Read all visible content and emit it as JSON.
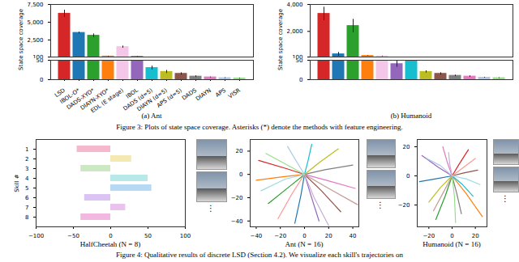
{
  "chart_data": [
    {
      "type": "bar",
      "title": "(a) Ant",
      "ylabel": "State space coverage",
      "categories": [
        "LSD",
        "IBOL-O*",
        "DADS-XYO*",
        "DIAYN-XYO*",
        "EDL (E stage)",
        "IBOL",
        "DADS (d=5)",
        "DIAYN (d=5)",
        "APS (d=5)",
        "DADS",
        "DIAYN",
        "APS",
        "VISR"
      ],
      "values": [
        6200,
        3500,
        3100,
        180,
        1500,
        130,
        30,
        20,
        15,
        8,
        6,
        4,
        3
      ],
      "errors": [
        500,
        120,
        250,
        40,
        150,
        30,
        5,
        4,
        3,
        2,
        1,
        1,
        1
      ],
      "colors": [
        "#d62728",
        "#1f77b4",
        "#2ca02c",
        "#ff7f0e",
        "#f4c6e7",
        "#9467bd",
        "#17becf",
        "#bcbd22",
        "#8c564b",
        "#7f7f7f",
        "#e377c2",
        "#aec7e8",
        "#98df8a"
      ],
      "panels": [
        {
          "ylim": [
            100,
            7500
          ],
          "yticks": [
            100,
            2500,
            5000,
            7500
          ]
        },
        {
          "ylim": [
            0,
            50
          ],
          "yticks": [
            0,
            50
          ]
        }
      ]
    },
    {
      "type": "bar",
      "title": "(b) Humanoid",
      "ylabel": "State space coverage",
      "tick_labels": "y",
      "categories": [
        null,
        null,
        null,
        null,
        null,
        null,
        null,
        null,
        null,
        null,
        null,
        null,
        null
      ],
      "values": [
        3300,
        300,
        2400,
        180,
        150,
        40,
        70,
        20,
        15,
        10,
        8,
        5,
        4
      ],
      "errors": [
        500,
        150,
        500,
        20,
        20,
        8,
        15,
        3,
        3,
        2,
        2,
        1,
        1
      ],
      "colors": [
        "#d62728",
        "#1f77b4",
        "#2ca02c",
        "#ff7f0e",
        "#f4c6e7",
        "#9467bd",
        "#17becf",
        "#bcbd22",
        "#8c564b",
        "#7f7f7f",
        "#e377c2",
        "#aec7e8",
        "#98df8a"
      ],
      "panels": [
        {
          "ylim": [
            100,
            4000
          ],
          "yticks": [
            100,
            2000,
            4000
          ]
        },
        {
          "ylim": [
            0,
            50
          ],
          "yticks": [
            0,
            50
          ]
        }
      ]
    },
    {
      "type": "bar",
      "orientation": "horizontal",
      "title": "HalfCheetah (N = 8)",
      "ylabel": "Skill #",
      "categories": [
        "1",
        "2",
        "3",
        "4",
        "5",
        "6",
        "7",
        "8"
      ],
      "values": [
        -45,
        28,
        -40,
        50,
        55,
        -35,
        20,
        -40
      ],
      "colors": [
        "#f4a6c0",
        "#f1e3a0",
        "#bfe3b4",
        "#a6e3e3",
        "#a6d0f0",
        "#d2b4f0",
        "#e3b4e8",
        "#f0a6d8"
      ],
      "xlim": [
        -100,
        100
      ],
      "xticks": [
        -100,
        -50,
        0,
        50,
        100
      ]
    },
    {
      "type": "line",
      "title": "Ant (N = 16)",
      "xlim": [
        -45,
        45
      ],
      "xticks": [
        -40,
        -20,
        0,
        20,
        40
      ],
      "ylim": [
        -45,
        30
      ],
      "yticks": [
        -40,
        -20,
        0,
        20
      ],
      "series": [
        {
          "color": "#d62728",
          "x": [
            0,
            -15,
            -38
          ],
          "values": [
            0,
            5,
            12
          ]
        },
        {
          "color": "#ff7f0e",
          "x": [
            0,
            -18,
            -40
          ],
          "values": [
            0,
            -2,
            -5
          ]
        },
        {
          "color": "#2ca02c",
          "x": [
            0,
            -12,
            -30
          ],
          "values": [
            0,
            -10,
            -25
          ]
        },
        {
          "color": "#1f77b4",
          "x": [
            0,
            -3,
            -8
          ],
          "values": [
            0,
            -18,
            -42
          ]
        },
        {
          "color": "#9467bd",
          "x": [
            0,
            5,
            12
          ],
          "values": [
            0,
            -17,
            -40
          ]
        },
        {
          "color": "#8c564b",
          "x": [
            0,
            14,
            30
          ],
          "values": [
            0,
            -14,
            -32
          ]
        },
        {
          "color": "#e377c2",
          "x": [
            0,
            18,
            42
          ],
          "values": [
            0,
            -5,
            -12
          ]
        },
        {
          "color": "#7f7f7f",
          "x": [
            0,
            17,
            40
          ],
          "values": [
            0,
            4,
            8
          ]
        },
        {
          "color": "#bcbd22",
          "x": [
            0,
            12,
            28
          ],
          "values": [
            0,
            10,
            22
          ]
        },
        {
          "color": "#17becf",
          "x": [
            0,
            3,
            6
          ],
          "values": [
            0,
            12,
            26
          ]
        },
        {
          "color": "#aec7e8",
          "x": [
            0,
            -6,
            -14
          ],
          "values": [
            0,
            10,
            24
          ]
        },
        {
          "color": "#98df8a",
          "x": [
            0,
            -14,
            -32
          ],
          "values": [
            0,
            8,
            18
          ]
        },
        {
          "color": "#ff9896",
          "x": [
            0,
            -10,
            -22
          ],
          "values": [
            0,
            -16,
            -38
          ]
        },
        {
          "color": "#c5b0d5",
          "x": [
            0,
            8,
            20
          ],
          "values": [
            0,
            -20,
            -44
          ]
        },
        {
          "color": "#c49c94",
          "x": [
            0,
            20,
            44
          ],
          "values": [
            0,
            -12,
            -26
          ]
        },
        {
          "color": "#9edae5",
          "x": [
            0,
            -16,
            -36
          ],
          "values": [
            0,
            -4,
            -14
          ]
        }
      ]
    },
    {
      "type": "line",
      "title": "Humanoid (N = 16)",
      "xlim": [
        -30,
        30
      ],
      "xticks": [
        -20,
        0,
        20
      ],
      "ylim": [
        -35,
        25
      ],
      "yticks": [
        -20,
        0,
        20
      ],
      "series": [
        {
          "color": "#ff7f0e",
          "x": [
            0,
            12,
            26
          ],
          "values": [
            0,
            -12,
            -28
          ]
        },
        {
          "color": "#9467bd",
          "x": [
            0,
            -12,
            -26
          ],
          "values": [
            0,
            6,
            14
          ]
        },
        {
          "color": "#2ca02c",
          "x": [
            0,
            -6,
            -14
          ],
          "values": [
            0,
            -14,
            -30
          ]
        },
        {
          "color": "#1f77b4",
          "x": [
            0,
            -14,
            -28
          ],
          "values": [
            0,
            -2,
            -4
          ]
        },
        {
          "color": "#d62728",
          "x": [
            0,
            6,
            14
          ],
          "values": [
            0,
            8,
            18
          ]
        },
        {
          "color": "#8c564b",
          "x": [
            0,
            10,
            22
          ],
          "values": [
            0,
            2,
            4
          ]
        },
        {
          "color": "#e377c2",
          "x": [
            0,
            -4,
            -8
          ],
          "values": [
            0,
            9,
            20
          ]
        },
        {
          "color": "#7f7f7f",
          "x": [
            0,
            4,
            8
          ],
          "values": [
            0,
            -12,
            -26
          ]
        },
        {
          "color": "#bcbd22",
          "x": [
            0,
            -10,
            -20
          ],
          "values": [
            0,
            -8,
            -18
          ]
        },
        {
          "color": "#17becf",
          "x": [
            0,
            9,
            18
          ],
          "values": [
            0,
            -6,
            -14
          ]
        },
        {
          "color": "#aec7e8",
          "x": [
            0,
            -10,
            -22
          ],
          "values": [
            0,
            7,
            12
          ]
        },
        {
          "color": "#98df8a",
          "x": [
            0,
            2,
            3
          ],
          "values": [
            0,
            -14,
            -32
          ]
        },
        {
          "color": "#ff9896",
          "x": [
            0,
            10,
            20
          ],
          "values": [
            0,
            6,
            12
          ]
        },
        {
          "color": "#c5b0d5",
          "x": [
            0,
            -2,
            -3
          ],
          "values": [
            0,
            8,
            16
          ]
        },
        {
          "color": "#c49c94",
          "x": [
            0,
            -8,
            -16
          ],
          "values": [
            0,
            -12,
            -24
          ]
        },
        {
          "color": "#9edae5",
          "x": [
            0,
            12,
            24
          ],
          "values": [
            0,
            -2,
            -6
          ]
        }
      ]
    }
  ],
  "figure_captions": [
    "Figure 3: Plots of state space coverage. Asterisks (*) denote the methods with feature engineering.",
    "Figure 4: Qualitative results of discrete LSD (Section 4.2). We visualize each skill's trajectories on"
  ],
  "ellipsis": "⋮"
}
